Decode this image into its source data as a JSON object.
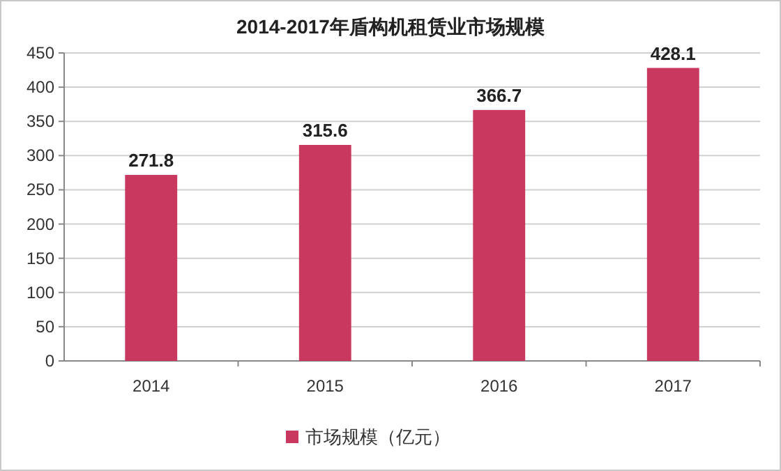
{
  "chart_data": {
    "type": "bar",
    "title": "2014-2017年盾构机租赁业市场规模",
    "categories": [
      "2014",
      "2015",
      "2016",
      "2017"
    ],
    "series": [
      {
        "name": "市场规模（亿元）",
        "color": "#c8385f",
        "values": [
          271.8,
          315.6,
          366.7,
          428.1
        ]
      }
    ],
    "ylim": [
      0,
      450
    ],
    "yticks": [
      0,
      50,
      100,
      150,
      200,
      250,
      300,
      350,
      400,
      450
    ],
    "grid": "y",
    "data_labels": true,
    "legend": "bottom"
  }
}
